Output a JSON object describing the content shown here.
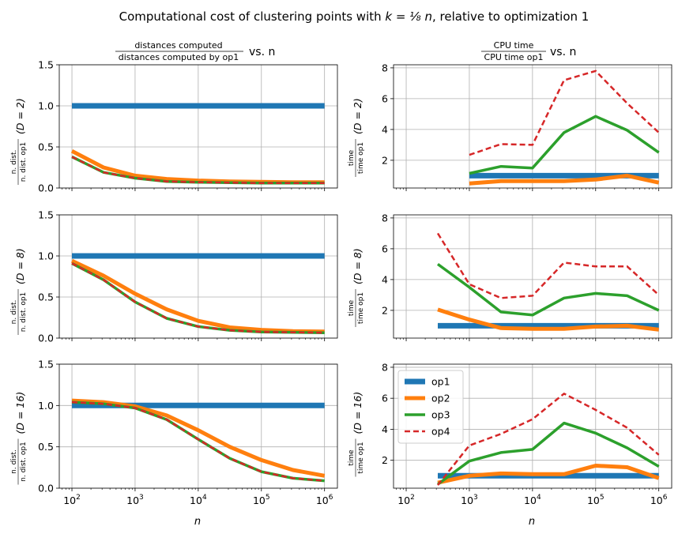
{
  "figure": {
    "title": "Computational cost of clustering points with k = ⅛ n, relative to optimization 1",
    "title_prefix": "Computational cost of clustering points with ",
    "title_math": "k = ⅛ n",
    "title_suffix": ", relative to optimization 1",
    "col_titles": [
      {
        "num": "distances computed",
        "den": "distances computed by op1",
        "suffix": "vs. n"
      },
      {
        "num": "CPU time",
        "den": "CPU time op1",
        "suffix": "vs. n"
      }
    ],
    "ylabels_left": [
      {
        "num": "n. dist.",
        "den": "n. dist. op1",
        "cond": "(D = 2)"
      },
      {
        "num": "n. dist.",
        "den": "n. dist. op1",
        "cond": "(D = 8)"
      },
      {
        "num": "n. dist.",
        "den": "n. dist. op1",
        "cond": "(D = 16)"
      }
    ],
    "ylabels_right": [
      {
        "num": "time",
        "den": "time op1",
        "cond": "(D = 2)"
      },
      {
        "num": "time",
        "den": "time op1",
        "cond": "(D = 8)"
      },
      {
        "num": "time",
        "den": "time op1",
        "cond": "(D = 16)"
      }
    ],
    "xlabel": "n",
    "legend": [
      "op1",
      "op2",
      "op3",
      "op4"
    ]
  },
  "series_styles": [
    {
      "name": "op1",
      "color": "#1f77b4",
      "width": 7,
      "dash": ""
    },
    {
      "name": "op2",
      "color": "#ff7f0e",
      "width": 5,
      "dash": ""
    },
    {
      "name": "op3",
      "color": "#2ca02c",
      "width": 3.5,
      "dash": ""
    },
    {
      "name": "op4",
      "color": "#d62728",
      "width": 2.5,
      "dash": "7,4"
    }
  ],
  "chart_data": [
    {
      "type": "line",
      "id": "dist-D2",
      "xscale": "log",
      "xlim": [
        63,
        1600000
      ],
      "ylim": [
        0,
        1.5
      ],
      "yticks": [
        0.0,
        0.5,
        1.0,
        1.5
      ],
      "ytick_labels": [
        "0.0",
        "0.5",
        "1.0",
        "1.5"
      ],
      "grid": true,
      "x": [
        100,
        316,
        1000,
        3162,
        10000,
        31623,
        100000,
        316228,
        1000000
      ],
      "series": [
        {
          "name": "op1",
          "values": [
            1,
            1,
            1,
            1,
            1,
            1,
            1,
            1,
            1
          ]
        },
        {
          "name": "op2",
          "values": [
            0.45,
            0.25,
            0.15,
            0.11,
            0.09,
            0.08,
            0.075,
            0.07,
            0.07
          ]
        },
        {
          "name": "op3",
          "values": [
            0.38,
            0.19,
            0.12,
            0.08,
            0.07,
            0.065,
            0.06,
            0.06,
            0.06
          ]
        },
        {
          "name": "op4",
          "values": [
            0.38,
            0.19,
            0.12,
            0.08,
            0.07,
            0.065,
            0.06,
            0.06,
            0.06
          ]
        }
      ]
    },
    {
      "type": "line",
      "id": "time-D2",
      "xscale": "log",
      "xlim": [
        63,
        1600000
      ],
      "ylim": [
        0.2,
        8.2
      ],
      "yticks": [
        2,
        4,
        6,
        8
      ],
      "ytick_labels": [
        "2",
        "4",
        "6",
        "8"
      ],
      "grid": true,
      "x": [
        1000,
        3162,
        10000,
        31623,
        100000,
        316228,
        1000000
      ],
      "series": [
        {
          "name": "op1",
          "values": [
            1,
            1,
            1,
            1,
            1,
            1,
            1
          ]
        },
        {
          "name": "op2",
          "values": [
            0.5,
            0.65,
            0.65,
            0.65,
            0.75,
            1.0,
            0.55
          ]
        },
        {
          "name": "op3",
          "values": [
            1.15,
            1.6,
            1.5,
            3.8,
            4.85,
            3.95,
            2.5
          ]
        },
        {
          "name": "op4",
          "values": [
            2.35,
            3.05,
            3.0,
            7.2,
            7.8,
            5.7,
            3.8
          ]
        }
      ]
    },
    {
      "type": "line",
      "id": "dist-D8",
      "xscale": "log",
      "xlim": [
        63,
        1600000
      ],
      "ylim": [
        0,
        1.5
      ],
      "yticks": [
        0.0,
        0.5,
        1.0,
        1.5
      ],
      "ytick_labels": [
        "0.0",
        "0.5",
        "1.0",
        "1.5"
      ],
      "grid": true,
      "x": [
        100,
        316,
        1000,
        3162,
        10000,
        31623,
        100000,
        316228,
        1000000
      ],
      "series": [
        {
          "name": "op1",
          "values": [
            1,
            1,
            1,
            1,
            1,
            1,
            1,
            1,
            1
          ]
        },
        {
          "name": "op2",
          "values": [
            0.94,
            0.76,
            0.54,
            0.35,
            0.21,
            0.13,
            0.1,
            0.085,
            0.08
          ]
        },
        {
          "name": "op3",
          "values": [
            0.91,
            0.71,
            0.44,
            0.24,
            0.14,
            0.095,
            0.075,
            0.07,
            0.065
          ]
        },
        {
          "name": "op4",
          "values": [
            0.91,
            0.71,
            0.44,
            0.24,
            0.14,
            0.095,
            0.075,
            0.07,
            0.065
          ]
        }
      ]
    },
    {
      "type": "line",
      "id": "time-D8",
      "xscale": "log",
      "xlim": [
        63,
        1600000
      ],
      "ylim": [
        0.2,
        8.2
      ],
      "yticks": [
        2,
        4,
        6,
        8
      ],
      "ytick_labels": [
        "2",
        "4",
        "6",
        "8"
      ],
      "grid": true,
      "x": [
        316,
        1000,
        3162,
        10000,
        31623,
        100000,
        316228,
        1000000
      ],
      "series": [
        {
          "name": "op1",
          "values": [
            1,
            1,
            1,
            1,
            1,
            1,
            1,
            1
          ]
        },
        {
          "name": "op2",
          "values": [
            2.05,
            1.4,
            0.85,
            0.8,
            0.8,
            0.95,
            1.0,
            0.75
          ]
        },
        {
          "name": "op3",
          "values": [
            5.0,
            3.5,
            1.9,
            1.7,
            2.8,
            3.1,
            2.95,
            2.0
          ]
        },
        {
          "name": "op4",
          "values": [
            7.0,
            3.7,
            2.8,
            2.95,
            5.1,
            4.85,
            4.85,
            3.0
          ]
        }
      ]
    },
    {
      "type": "line",
      "id": "dist-D16",
      "xscale": "log",
      "xlim": [
        63,
        1600000
      ],
      "ylim": [
        0,
        1.5
      ],
      "yticks": [
        0.0,
        0.5,
        1.0,
        1.5
      ],
      "ytick_labels": [
        "0.0",
        "0.5",
        "1.0",
        "1.5"
      ],
      "grid": true,
      "x": [
        100,
        316,
        1000,
        3162,
        10000,
        31623,
        100000,
        316228,
        1000000
      ],
      "series": [
        {
          "name": "op1",
          "values": [
            1,
            1,
            1,
            1,
            1,
            1,
            1,
            1,
            1
          ]
        },
        {
          "name": "op2",
          "values": [
            1.06,
            1.04,
            0.99,
            0.88,
            0.7,
            0.5,
            0.34,
            0.22,
            0.15
          ]
        },
        {
          "name": "op3",
          "values": [
            1.04,
            1.02,
            0.97,
            0.83,
            0.59,
            0.36,
            0.2,
            0.12,
            0.09
          ]
        },
        {
          "name": "op4",
          "values": [
            1.04,
            1.02,
            0.97,
            0.83,
            0.59,
            0.36,
            0.2,
            0.12,
            0.09
          ]
        }
      ]
    },
    {
      "type": "line",
      "id": "time-D16",
      "xscale": "log",
      "xlim": [
        63,
        1600000
      ],
      "ylim": [
        0.2,
        8.2
      ],
      "yticks": [
        2,
        4,
        6,
        8
      ],
      "ytick_labels": [
        "2",
        "4",
        "6",
        "8"
      ],
      "grid": true,
      "legend_position": "upper-left",
      "x": [
        316,
        1000,
        3162,
        10000,
        31623,
        100000,
        316228,
        1000000
      ],
      "series": [
        {
          "name": "op1",
          "values": [
            1,
            1,
            1,
            1,
            1,
            1,
            1,
            1
          ]
        },
        {
          "name": "op2",
          "values": [
            0.55,
            1.0,
            1.15,
            1.1,
            1.1,
            1.65,
            1.55,
            0.85
          ]
        },
        {
          "name": "op3",
          "values": [
            0.45,
            1.95,
            2.5,
            2.7,
            4.4,
            3.75,
            2.8,
            1.6
          ]
        },
        {
          "name": "op4",
          "values": [
            0.4,
            2.95,
            3.7,
            4.65,
            6.3,
            5.25,
            4.1,
            2.35
          ]
        }
      ]
    }
  ]
}
